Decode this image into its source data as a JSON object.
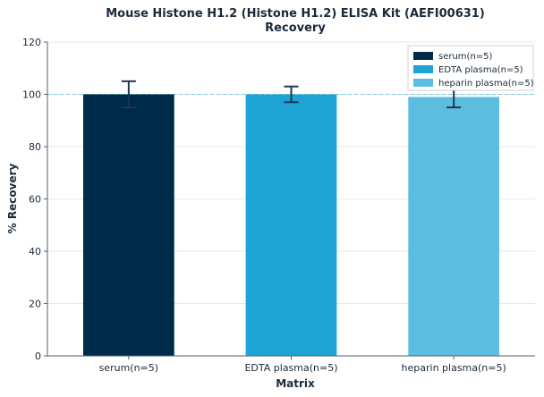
{
  "chart_data": {
    "type": "bar",
    "title_line1": "Mouse Histone H1.2 (Histone H1.2) ELISA Kit (AEFI00631)",
    "title_line2": "Recovery",
    "xlabel": "Matrix",
    "ylabel": "% Recovery",
    "categories": [
      "serum(n=5)",
      "EDTA plasma(n=5)",
      "heparin plasma(n=5)"
    ],
    "values": [
      100,
      100,
      99
    ],
    "error": [
      5,
      3,
      4
    ],
    "colors": [
      "#002a4a",
      "#1ea4d4",
      "#5bbee0"
    ],
    "ylim": [
      0,
      120
    ],
    "yticks": [
      0,
      20,
      40,
      60,
      80,
      100,
      120
    ],
    "ytick_labels": [
      "0",
      "20",
      "40",
      "60",
      "80",
      "100",
      "120"
    ],
    "reference_line": 100,
    "reference_color": "#7bc8d8",
    "grid": true,
    "legend_position": "top-right",
    "legend": [
      "serum(n=5)",
      "EDTA plasma(n=5)",
      "heparin plasma(n=5)"
    ]
  }
}
